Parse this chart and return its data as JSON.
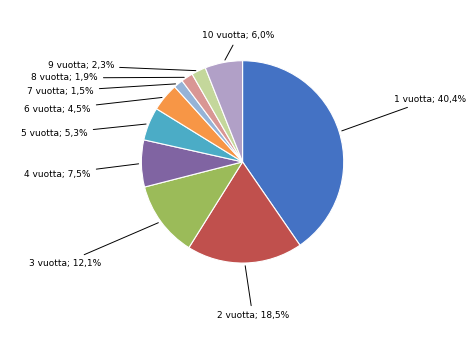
{
  "labels": [
    "1 vuotta",
    "2 vuotta",
    "3 vuotta",
    "4 vuotta",
    "5 vuotta",
    "6 vuotta",
    "7 vuotta",
    "8 vuotta",
    "9 vuotta",
    "10 vuotta"
  ],
  "values": [
    40.4,
    18.5,
    12.1,
    7.5,
    5.3,
    4.5,
    1.5,
    1.9,
    2.3,
    6.0
  ],
  "pct_strings": [
    "40,4%",
    "18,5%",
    "12,1%",
    "7,5%",
    "5,3%",
    "4,5%",
    "1,5%",
    "1,9%",
    "2,3%",
    "6,0%"
  ],
  "colors": [
    "#4472C4",
    "#C0504D",
    "#9BBB59",
    "#8064A2",
    "#4BACC6",
    "#F79646",
    "#95B3D7",
    "#D99694",
    "#C4D79B",
    "#B1A0C7"
  ],
  "figsize": [
    4.75,
    3.44
  ],
  "dpi": 100,
  "startangle": 90
}
